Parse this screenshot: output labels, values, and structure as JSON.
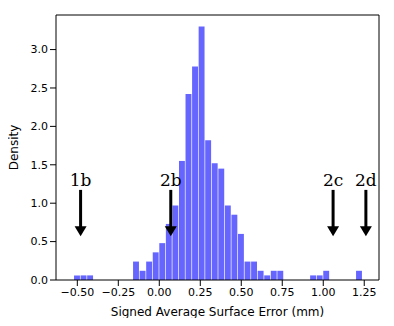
{
  "chart_data": {
    "type": "histogram",
    "x_label": "Signed Average Surface Error (mm)",
    "y_label": "Density",
    "bins": [
      -0.52,
      -0.48,
      -0.44,
      -0.4,
      -0.36,
      -0.32,
      -0.28,
      -0.24,
      -0.2,
      -0.16,
      -0.12,
      -0.08,
      -0.04,
      0.0,
      0.04,
      0.08,
      0.12,
      0.16,
      0.2,
      0.24,
      0.28,
      0.32,
      0.36,
      0.4,
      0.44,
      0.48,
      0.52,
      0.56,
      0.6,
      0.64,
      0.68,
      0.72,
      0.76,
      0.8,
      0.84,
      0.88,
      0.92,
      0.96,
      1.0,
      1.04,
      1.08,
      1.12,
      1.16,
      1.2,
      1.24,
      1.28
    ],
    "counts": [
      0.06,
      0.06,
      0.06,
      0,
      0,
      0,
      0,
      0,
      0,
      0.24,
      0.12,
      0.24,
      0.36,
      0.48,
      0.73,
      0.97,
      1.55,
      2.42,
      2.78,
      3.3,
      1.82,
      1.52,
      1.45,
      0.97,
      0.85,
      0.6,
      0.24,
      0.24,
      0.12,
      0.06,
      0.12,
      0.12,
      0,
      0,
      0,
      0,
      0.06,
      0.06,
      0.12,
      0,
      0,
      0,
      0,
      0.12,
      0
    ],
    "color": "#6666ff",
    "xlim": [
      -0.63,
      1.34
    ],
    "ylim": [
      0,
      3.45
    ],
    "xticks": [
      {
        "value": -0.5,
        "label": "−0.50"
      },
      {
        "value": -0.25,
        "label": "−0.25"
      },
      {
        "value": 0,
        "label": "0.00"
      },
      {
        "value": 0.25,
        "label": "0.25"
      },
      {
        "value": 0.5,
        "label": "0.50"
      },
      {
        "value": 0.75,
        "label": "0.75"
      },
      {
        "value": 1,
        "label": "1.00"
      },
      {
        "value": 1.25,
        "label": "1.25"
      }
    ],
    "yticks": [
      {
        "value": 0,
        "label": "0.0"
      },
      0.5,
      {
        "value": 1,
        "label": "1.0"
      },
      1.5,
      {
        "value": 2,
        "label": "2.0"
      },
      2.5,
      {
        "value": 3,
        "label": "3.0"
      }
    ],
    "annotations": [
      {
        "text": "1b",
        "x": -0.48
      },
      {
        "text": "2b",
        "x": 0.07
      },
      {
        "text": "2c",
        "x": 1.06
      },
      {
        "text": "2d",
        "x": 1.26
      }
    ]
  }
}
